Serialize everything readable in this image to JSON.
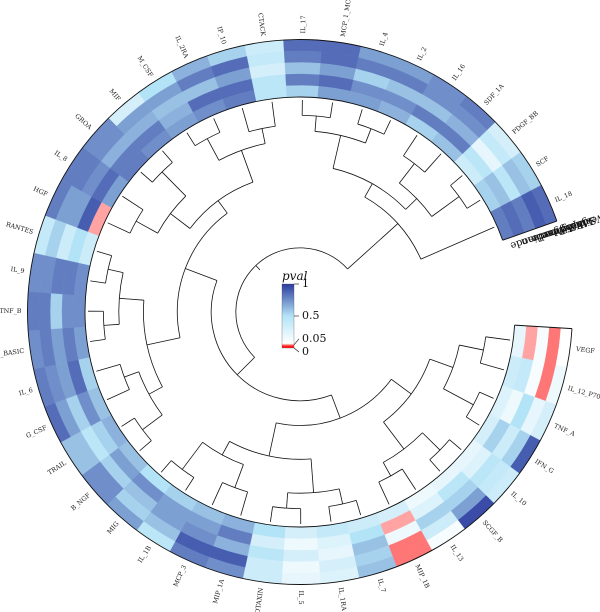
{
  "chart_data": {
    "type": "heatmap",
    "layout": "circular",
    "methods": [
      "IVW",
      "MR Egger",
      "Simple mode",
      "Weighted median",
      "Weighted mode"
    ],
    "categories": [
      "VEGF",
      "IL_12_P70",
      "TNF_A",
      "IFN_G",
      "IL_10",
      "SCGF_B",
      "IL_13",
      "MIP_1B",
      "IL_7",
      "IL_1RA",
      "IL_5",
      "EOTAXIN",
      "MIP_1A",
      "MCP_3",
      "IL_1B",
      "MIG",
      "B_NGF",
      "TRAIL",
      "G_CSF",
      "IL_6",
      "FGF_BASIC",
      "TNF_B",
      "IL_9",
      "RANTES",
      "HGF",
      "IL_8",
      "GROA",
      "MIF",
      "M_CSF",
      "IL_2RA",
      "IP_10",
      "CTACK",
      "IL_17",
      "MCP_1_MCAF",
      "IL_4",
      "IL_2",
      "IL_16",
      "SDF_1A",
      "PDGF_BB",
      "SCF",
      "IL_18"
    ],
    "values": [
      [
        0.05,
        0.15,
        0.3,
        0.9,
        0.35,
        0.95,
        0.1,
        0.02,
        0.6,
        0.25,
        0.2,
        0.35,
        0.75,
        0.8,
        0.45,
        0.7,
        0.75,
        0.6,
        0.85,
        0.8,
        0.75,
        0.8,
        0.75,
        0.4,
        0.8,
        0.8,
        0.75,
        0.3,
        0.5,
        0.65,
        0.55,
        0.35,
        0.85,
        0.85,
        0.7,
        0.7,
        0.75,
        0.8,
        0.3,
        0.55,
        0.85
      ],
      [
        0.02,
        0.02,
        0.2,
        0.55,
        0.4,
        0.7,
        0.35,
        0.02,
        0.55,
        0.3,
        0.15,
        0.35,
        0.9,
        0.9,
        0.6,
        0.55,
        0.75,
        0.6,
        0.7,
        0.75,
        0.8,
        0.8,
        0.75,
        0.55,
        0.7,
        0.8,
        0.75,
        0.7,
        0.7,
        0.8,
        0.85,
        0.4,
        0.8,
        0.85,
        0.8,
        0.8,
        0.75,
        0.75,
        0.4,
        0.6,
        0.9
      ],
      [
        0.1,
        0.1,
        0.5,
        0.35,
        0.45,
        0.55,
        0.55,
        0.15,
        0.6,
        0.2,
        0.3,
        0.45,
        0.65,
        0.75,
        0.7,
        0.6,
        0.55,
        0.45,
        0.55,
        0.7,
        0.7,
        0.55,
        0.8,
        0.35,
        0.7,
        0.75,
        0.65,
        0.65,
        0.6,
        0.6,
        0.7,
        0.3,
        0.6,
        0.7,
        0.55,
        0.6,
        0.6,
        0.65,
        0.2,
        0.45,
        0.8
      ],
      [
        0.03,
        0.4,
        0.15,
        0.55,
        0.25,
        0.45,
        0.25,
        0.03,
        0.5,
        0.25,
        0.15,
        0.3,
        0.8,
        0.7,
        0.7,
        0.75,
        0.7,
        0.55,
        0.75,
        0.85,
        0.8,
        0.75,
        0.8,
        0.5,
        0.9,
        0.85,
        0.8,
        0.8,
        0.65,
        0.85,
        0.85,
        0.45,
        0.8,
        0.85,
        0.75,
        0.75,
        0.8,
        0.8,
        0.45,
        0.6,
        0.85
      ],
      [
        0.2,
        0.35,
        0.25,
        0.3,
        0.2,
        0.2,
        0.15,
        0.3,
        0.35,
        0.4,
        0.3,
        0.5,
        0.65,
        0.6,
        0.55,
        0.5,
        0.6,
        0.65,
        0.6,
        0.55,
        0.7,
        0.75,
        0.75,
        0.35,
        0.03,
        0.7,
        0.8,
        0.75,
        0.7,
        0.75,
        0.8,
        0.45,
        0.55,
        0.7,
        0.7,
        0.65,
        0.55,
        0.6,
        0.35,
        0.55,
        0.8
      ]
    ],
    "legend": {
      "title": "pval",
      "ticks": [
        {
          "label": "1",
          "value": 1
        },
        {
          "label": "0.5",
          "value": 0.5
        },
        {
          "label": "0.05",
          "value": 0.05
        },
        {
          "label": "0",
          "value": 0
        }
      ],
      "colors": [
        "#ff1a1a",
        "#ffffff",
        "#b3e3f6",
        "#2c3b9e"
      ]
    }
  }
}
